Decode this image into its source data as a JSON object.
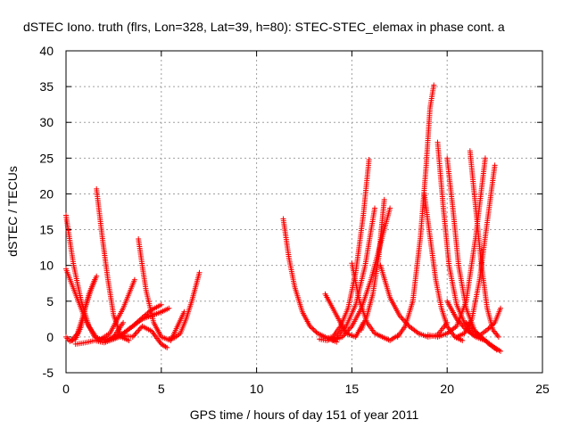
{
  "chart_data": {
    "type": "scatter",
    "title": "dSTEC Iono. truth (flrs, Lon=328, Lat=39, h=80): STEC-STEC_elemax in phase cont. a",
    "xlabel": "GPS time / hours of day 151 of year 2011",
    "ylabel": "dSTEC  / TECUs",
    "xlim": [
      0,
      25
    ],
    "ylim": [
      -5,
      40
    ],
    "xticks": [
      "0",
      "5",
      "10",
      "15",
      "20",
      "25"
    ],
    "yticks": [
      "-5",
      "0",
      "5",
      "10",
      "15",
      "20",
      "25",
      "30",
      "35",
      "40"
    ],
    "grid": true,
    "marker": "+",
    "color": "#ff0000",
    "series": [
      {
        "x": [
          0.0,
          0.4,
          0.8,
          1.2,
          1.7,
          2.3,
          3.0,
          3.6
        ],
        "y": [
          17.0,
          10.0,
          5.0,
          1.5,
          -0.5,
          0.5,
          4.0,
          8.0
        ]
      },
      {
        "x": [
          0.0,
          0.5,
          1.0,
          1.5,
          2.0,
          2.5,
          3.0
        ],
        "y": [
          9.5,
          6.0,
          2.5,
          0.0,
          -0.5,
          0.0,
          2.0
        ]
      },
      {
        "x": [
          0.0,
          0.2,
          0.5,
          0.8,
          1.0,
          1.3,
          1.6
        ],
        "y": [
          0.0,
          -0.6,
          -0.3,
          1.5,
          4.0,
          6.5,
          8.5
        ]
      },
      {
        "x": [
          0.3,
          0.6,
          0.9,
          1.2,
          1.5
        ],
        "y": [
          -0.5,
          0.5,
          3.0,
          6.0,
          8.0
        ]
      },
      {
        "x": [
          1.6,
          1.9,
          2.2,
          2.5,
          2.9,
          3.3
        ],
        "y": [
          20.7,
          14.0,
          8.0,
          3.0,
          0.0,
          -0.5
        ]
      },
      {
        "x": [
          0.5,
          1.0,
          1.5,
          2.0,
          2.5,
          3.0,
          3.5,
          4.0,
          4.5,
          5.0
        ],
        "y": [
          -1.0,
          -0.8,
          -0.5,
          -0.8,
          -0.3,
          0.5,
          1.5,
          2.7,
          3.8,
          4.5
        ]
      },
      {
        "x": [
          2.0,
          2.5,
          3.0,
          3.5,
          4.0,
          4.5,
          5.0,
          5.4
        ],
        "y": [
          -0.5,
          0.0,
          0.5,
          1.5,
          2.5,
          3.0,
          3.5,
          4.0
        ]
      },
      {
        "x": [
          2.5,
          3.0,
          3.5,
          4.0,
          4.5,
          5.0,
          5.3
        ],
        "y": [
          -0.3,
          0.2,
          0.0,
          1.5,
          0.8,
          -1.0,
          -1.5
        ]
      },
      {
        "x": [
          3.8,
          4.0,
          4.2,
          4.6,
          5.0,
          5.5,
          6.2
        ],
        "y": [
          13.7,
          10.0,
          6.5,
          2.0,
          0.0,
          -0.5,
          3.5
        ]
      },
      {
        "x": [
          5.4,
          5.7,
          6.0,
          6.3,
          6.6,
          7.0
        ],
        "y": [
          -0.3,
          -0.1,
          0.5,
          2.5,
          5.0,
          9.0
        ]
      },
      {
        "x": [
          11.4,
          11.7,
          12.0,
          12.4,
          12.8,
          13.2,
          13.6,
          14.2
        ],
        "y": [
          16.5,
          11.0,
          7.0,
          3.5,
          1.5,
          0.5,
          0.0,
          -0.7
        ]
      },
      {
        "x": [
          13.3,
          13.7,
          14.2,
          14.7,
          15.2,
          15.7,
          16.2
        ],
        "y": [
          -0.3,
          -0.5,
          0.0,
          1.5,
          4.5,
          10.0,
          18.0
        ]
      },
      {
        "x": [
          13.6,
          14.0,
          14.4,
          14.8,
          15.2,
          15.6,
          15.9
        ],
        "y": [
          -0.2,
          0.0,
          1.5,
          4.0,
          9.0,
          17.0,
          24.8
        ]
      },
      {
        "x": [
          13.6,
          14.2,
          14.7,
          15.2,
          15.6
        ],
        "y": [
          6.0,
          3.0,
          0.5,
          0.0,
          2.0
        ]
      },
      {
        "x": [
          15.0,
          15.4,
          15.8,
          16.2,
          16.6,
          17.0,
          17.4
        ],
        "y": [
          10.3,
          5.0,
          2.0,
          0.5,
          0.0,
          -0.5,
          0.2
        ]
      },
      {
        "x": [
          14.0,
          14.5,
          15.0,
          15.5,
          16.0,
          16.5,
          17.0
        ],
        "y": [
          -0.5,
          0.0,
          1.5,
          4.0,
          8.0,
          13.0,
          18.0
        ]
      },
      {
        "x": [
          15.5,
          15.8,
          16.1,
          16.4,
          16.7
        ],
        "y": [
          1.0,
          3.0,
          6.0,
          11.0,
          19.2
        ]
      },
      {
        "x": [
          16.5,
          17.0,
          17.5,
          18.0,
          18.5,
          19.0,
          19.5,
          20.0
        ],
        "y": [
          10.0,
          5.5,
          3.0,
          1.5,
          0.5,
          0.0,
          0.3,
          2.0
        ]
      },
      {
        "x": [
          17.4,
          17.8,
          18.2,
          18.6,
          18.9,
          19.1,
          19.3
        ],
        "y": [
          0.0,
          1.5,
          5.0,
          14.0,
          24.0,
          32.0,
          35.2
        ]
      },
      {
        "x": [
          18.8,
          19.1,
          19.4,
          19.7,
          20.0,
          20.4,
          20.8
        ],
        "y": [
          20.0,
          14.0,
          8.0,
          4.0,
          1.5,
          0.0,
          -0.5
        ]
      },
      {
        "x": [
          19.5,
          19.8,
          20.1,
          20.5,
          20.9,
          21.3
        ],
        "y": [
          27.2,
          18.0,
          10.0,
          4.5,
          2.0,
          0.5
        ]
      },
      {
        "x": [
          20.0,
          20.3,
          20.6,
          21.0,
          21.5,
          22.0
        ],
        "y": [
          25.0,
          18.0,
          10.0,
          4.0,
          0.5,
          -0.5
        ]
      },
      {
        "x": [
          21.2,
          21.5,
          21.8,
          22.1,
          22.4,
          22.7
        ],
        "y": [
          26.0,
          18.0,
          10.0,
          4.0,
          1.0,
          0.0
        ]
      },
      {
        "x": [
          19.0,
          19.5,
          20.0,
          20.5,
          21.0,
          21.5,
          22.0
        ],
        "y": [
          0.3,
          0.0,
          0.5,
          1.5,
          5.0,
          14.0,
          25.0
        ]
      },
      {
        "x": [
          20.5,
          20.9,
          21.3,
          21.7,
          22.1,
          22.5
        ],
        "y": [
          0.0,
          0.5,
          2.5,
          8.0,
          16.0,
          24.0
        ]
      },
      {
        "x": [
          21.0,
          21.4,
          21.8,
          22.2,
          22.6
        ],
        "y": [
          2.0,
          1.0,
          0.0,
          -1.0,
          -1.8
        ]
      },
      {
        "x": [
          21.3,
          21.7,
          22.1,
          22.5,
          22.8
        ],
        "y": [
          0.5,
          0.2,
          1.0,
          2.0,
          4.0
        ]
      },
      {
        "x": [
          20.0,
          20.5,
          21.0,
          21.5,
          22.0,
          22.5,
          22.8
        ],
        "y": [
          5.0,
          2.5,
          1.0,
          0.0,
          -0.5,
          -1.5,
          -2.0
        ]
      }
    ]
  }
}
